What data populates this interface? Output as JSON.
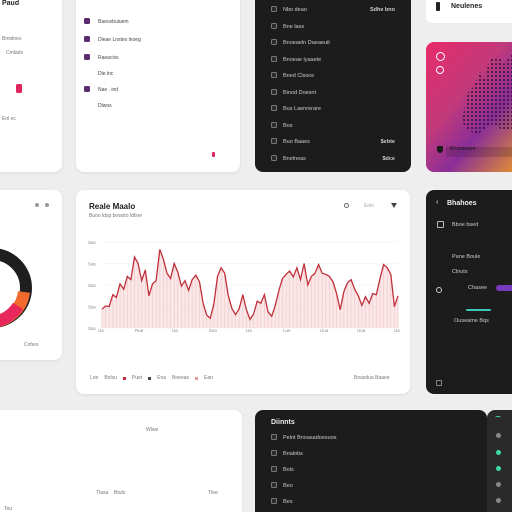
{
  "top_left": {
    "title": "Paud",
    "label1": "Bmidnes",
    "label2": "Cmlads",
    "label3": "Enl ec"
  },
  "top_menu": {
    "items": [
      {
        "label": "Baecebuiuem"
      },
      {
        "label": "Dleae Lnstes lnoeg"
      },
      {
        "label": "Raeaciss"
      },
      {
        "label": "Dle lnc"
      },
      {
        "label": "Nae . ind"
      },
      {
        "label": "Dlwos"
      }
    ]
  },
  "dark_list": {
    "items": [
      {
        "label": "Nbo deao",
        "value": "Sdhe bno"
      },
      {
        "label": "Bne lass",
        "value": ""
      },
      {
        "label": "Bnoeaeln Daeaeuit",
        "value": ""
      },
      {
        "label": "Bnoeae lyaaete",
        "value": ""
      },
      {
        "label": "Bned Clsoce",
        "value": ""
      },
      {
        "label": "Binod Doesnt",
        "value": ""
      },
      {
        "label": "Bus Laenrerare",
        "value": ""
      },
      {
        "label": "Bos",
        "value": ""
      },
      {
        "label": "Buo Baaes",
        "value": "$ebte"
      },
      {
        "label": "Bnelneas",
        "value": "$dce"
      }
    ]
  },
  "hero": {
    "title": "Neulenes",
    "footer_label": "Bhaadeaee"
  },
  "donut": {
    "label": "Cohes"
  },
  "chart_panel": {
    "title": "Reale Maalo",
    "subtitle": "Buoo ldsp bowsto ldtsre",
    "toolbar_label": "Enle",
    "legend": [
      {
        "label": "Loe"
      },
      {
        "label": "Bolsu"
      },
      {
        "label": "Puet"
      },
      {
        "label": "Ena"
      },
      {
        "label": "Boeeas"
      },
      {
        "label": "Ean"
      }
    ],
    "footer_right": "Bnasdua Baaee"
  },
  "chart_data": {
    "type": "area",
    "y_ticks": [
      "Sas",
      "Sas",
      "Sas",
      "Sas",
      "Sas"
    ],
    "x_ticks": [
      "Ua",
      "Rue",
      "Ua",
      "Eun",
      "Ua",
      "Lue",
      "Uua",
      "Uua",
      "Ua"
    ],
    "y": [
      35,
      41,
      40,
      62,
      57,
      82,
      72,
      96,
      90,
      132,
      120,
      88,
      108,
      60,
      82,
      88,
      146,
      128,
      102,
      92,
      120,
      104,
      78,
      88,
      70,
      90,
      98,
      86,
      46,
      24,
      18,
      45,
      96,
      112,
      102,
      60,
      36,
      25,
      36,
      62,
      34,
      16,
      26,
      50,
      46,
      62,
      30,
      22,
      42,
      70,
      92,
      100,
      106,
      95,
      112,
      90,
      120,
      80,
      96,
      102,
      118,
      102,
      100,
      96,
      86,
      64,
      34,
      68,
      84,
      90,
      72,
      60,
      42,
      58,
      46,
      64,
      62,
      92,
      118,
      112,
      100,
      40,
      60
    ],
    "ylim": [
      0,
      160
    ],
    "color": "#c0303a",
    "fill": "#f6d4d6"
  },
  "right_panel": {
    "title": "Bhahoes",
    "row1": "Bboe bsed",
    "row2": "Pane Boule",
    "row3": "Clnuts",
    "row4": "Chasee",
    "row5": "Ouseame Bqs"
  },
  "bottom_left": {
    "label1": "Wlwe",
    "label2": "Tlasa",
    "label3": "Btuts",
    "label4": "Tlee",
    "label5": "Teu"
  },
  "bottom_dark": {
    "title": "Diinnts",
    "items": [
      {
        "label": "Pelnt Bnoasadoesuos"
      },
      {
        "label": "Bnalobs"
      },
      {
        "label": "Bols"
      },
      {
        "label": "Beo"
      },
      {
        "label": "Bes"
      }
    ]
  }
}
